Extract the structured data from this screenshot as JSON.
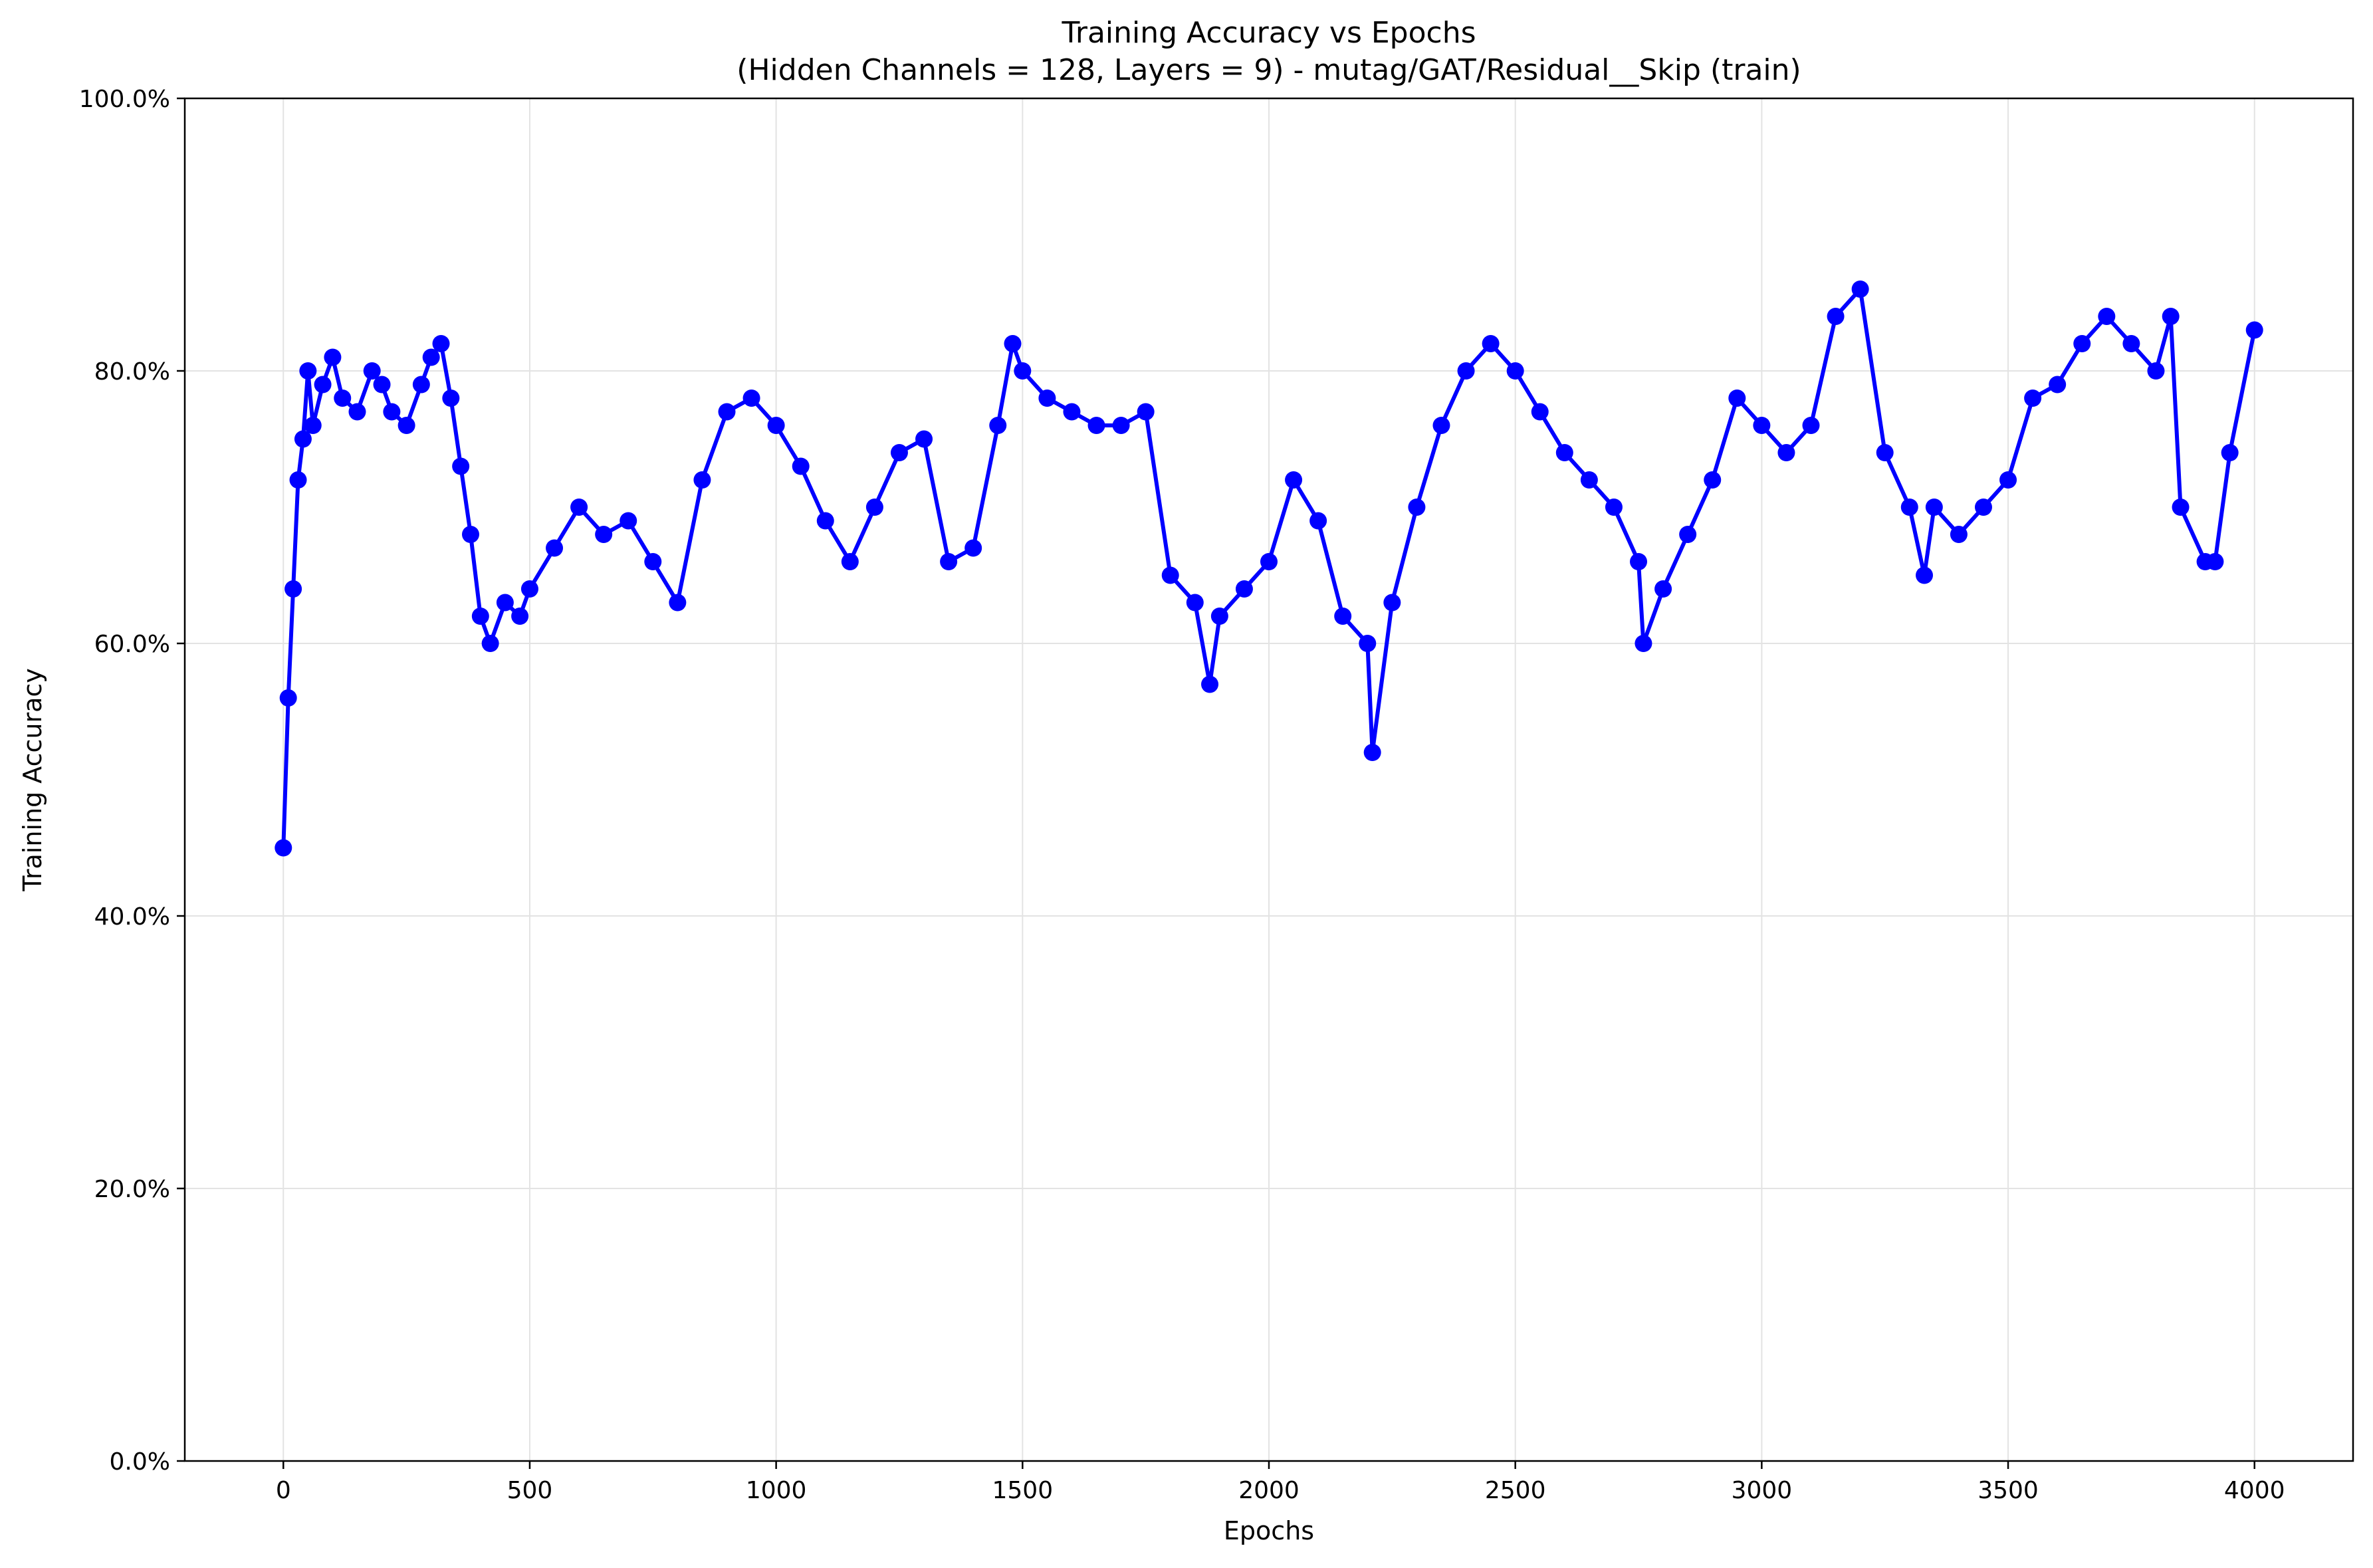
{
  "chart_data": {
    "type": "line",
    "title": "Training Accuracy vs Epochs",
    "subtitle": "(Hidden Channels = 128, Layers = 9) - mutag/GAT/Residual__Skip (train)",
    "xlabel": "Epochs",
    "ylabel": "Training Accuracy",
    "xlim": [
      -200,
      4200
    ],
    "ylim": [
      0,
      100
    ],
    "x_ticks": [
      0,
      500,
      1000,
      1500,
      2000,
      2500,
      3000,
      3500,
      4000
    ],
    "x_tick_labels": [
      "0",
      "500",
      "1000",
      "1500",
      "2000",
      "2500",
      "3000",
      "3500",
      "4000"
    ],
    "y_ticks": [
      0,
      20,
      40,
      60,
      80,
      100
    ],
    "y_tick_labels": [
      "0.0%",
      "20.0%",
      "40.0%",
      "60.0%",
      "80.0%",
      "100.0%"
    ],
    "grid": true,
    "line_color": "#0000ff",
    "marker": "circle",
    "series": [
      {
        "x": [
          0,
          10,
          20,
          30,
          40,
          50,
          60,
          80,
          100,
          120,
          150,
          180,
          200,
          220,
          250,
          280,
          300,
          320,
          340,
          360,
          380,
          400,
          420,
          450,
          480,
          500,
          550,
          600,
          650,
          700,
          750,
          800,
          850,
          900,
          950,
          1000,
          1050,
          1100,
          1150,
          1200,
          1250,
          1300,
          1350,
          1400,
          1450,
          1480,
          1500,
          1550,
          1600,
          1650,
          1700,
          1750,
          1800,
          1850,
          1880,
          1900,
          1950,
          2000,
          2050,
          2100,
          2150,
          2200,
          2210,
          2250,
          2300,
          2350,
          2400,
          2450,
          2500,
          2550,
          2600,
          2650,
          2700,
          2750,
          2760,
          2800,
          2850,
          2900,
          2950,
          3000,
          3050,
          3100,
          3150,
          3200,
          3250,
          3300,
          3330,
          3350,
          3400,
          3450,
          3500,
          3550,
          3600,
          3650,
          3700,
          3750,
          3800,
          3830,
          3850,
          3900,
          3920,
          3950,
          4000
        ],
        "values": [
          45,
          56,
          64,
          72,
          75,
          80,
          76,
          79,
          81,
          78,
          77,
          80,
          79,
          77,
          76,
          79,
          81,
          82,
          78,
          73,
          68,
          62,
          60,
          63,
          62,
          64,
          67,
          70,
          68,
          69,
          66,
          63,
          72,
          77,
          78,
          76,
          73,
          69,
          66,
          70,
          74,
          75,
          66,
          67,
          76,
          82,
          80,
          78,
          77,
          76,
          76,
          77,
          65,
          63,
          57,
          62,
          64,
          66,
          72,
          69,
          62,
          60,
          52,
          63,
          70,
          76,
          80,
          82,
          80,
          77,
          74,
          72,
          70,
          66,
          60,
          64,
          68,
          72,
          78,
          76,
          74,
          76,
          84,
          86,
          74,
          70,
          65,
          70,
          68,
          70,
          72,
          78,
          79,
          82,
          84,
          82,
          80,
          84,
          70,
          66,
          66,
          74,
          83
        ]
      }
    ]
  }
}
